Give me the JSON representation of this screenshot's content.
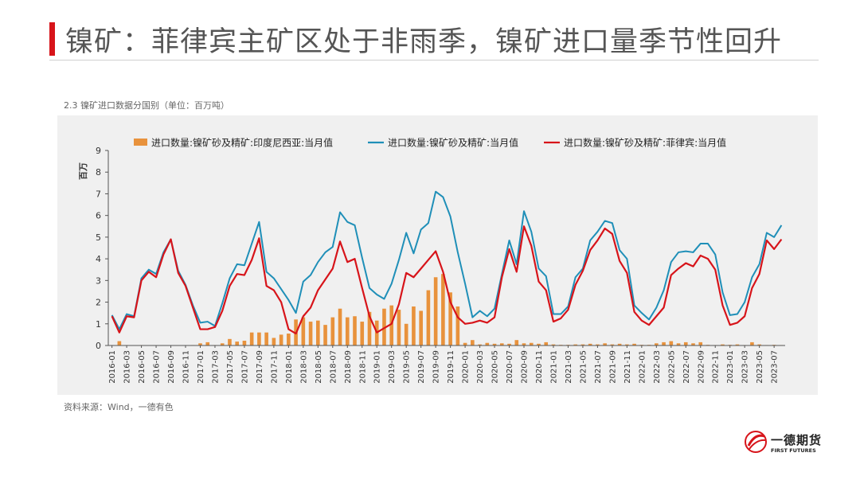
{
  "slide": {
    "title": "镍矿：菲律宾主矿区处于非雨季，镍矿进口量季节性回升",
    "accent_color": "#d7141a"
  },
  "chart_caption": "2.3 镍矿进口数据分国别（单位：百万吨）",
  "source_note": "资料来源：Wind，一德有色",
  "logo": {
    "name_cn": "一德期货",
    "name_en": "FIRST FUTURES",
    "icon": "swoosh-circle-logo"
  },
  "chart_data": {
    "type": "bar",
    "ylabel": "百万",
    "ylim": [
      0,
      9
    ],
    "yticks": [
      0,
      1,
      2,
      3,
      4,
      5,
      6,
      7,
      8,
      9
    ],
    "grid": false,
    "legend_position": "top",
    "x": [
      "2016-01",
      "2016-02",
      "2016-03",
      "2016-04",
      "2016-05",
      "2016-06",
      "2016-07",
      "2016-08",
      "2016-09",
      "2016-10",
      "2016-11",
      "2016-12",
      "2017-01",
      "2017-02",
      "2017-03",
      "2017-04",
      "2017-05",
      "2017-06",
      "2017-07",
      "2017-08",
      "2017-09",
      "2017-10",
      "2017-11",
      "2017-12",
      "2018-01",
      "2018-02",
      "2018-03",
      "2018-04",
      "2018-05",
      "2018-06",
      "2018-07",
      "2018-08",
      "2018-09",
      "2018-10",
      "2018-11",
      "2018-12",
      "2019-01",
      "2019-02",
      "2019-03",
      "2019-04",
      "2019-05",
      "2019-06",
      "2019-07",
      "2019-08",
      "2019-09",
      "2019-10",
      "2019-11",
      "2019-12",
      "2020-01",
      "2020-02",
      "2020-03",
      "2020-04",
      "2020-05",
      "2020-06",
      "2020-07",
      "2020-08",
      "2020-09",
      "2020-10",
      "2020-11",
      "2020-12",
      "2021-01",
      "2021-02",
      "2021-03",
      "2021-04",
      "2021-05",
      "2021-06",
      "2021-07",
      "2021-08",
      "2021-09",
      "2021-10",
      "2021-11",
      "2021-12",
      "2022-01",
      "2022-02",
      "2022-03",
      "2022-04",
      "2022-05",
      "2022-06",
      "2022-07",
      "2022-08",
      "2022-09",
      "2022-10",
      "2022-11",
      "2022-12",
      "2023-01",
      "2023-02",
      "2023-03",
      "2023-04",
      "2023-05",
      "2023-06",
      "2023-07",
      "2023-08"
    ],
    "xtick_labels": [
      "2016-01",
      "2016-03",
      "2016-05",
      "2016-07",
      "2016-09",
      "2016-11",
      "2017-01",
      "2017-03",
      "2017-05",
      "2017-07",
      "2017-09",
      "2017-11",
      "2018-01",
      "2018-03",
      "2018-05",
      "2018-07",
      "2018-09",
      "2018-11",
      "2019-01",
      "2019-03",
      "2019-05",
      "2019-07",
      "2019-09",
      "2019-11",
      "2020-01",
      "2020-03",
      "2020-05",
      "2020-07",
      "2020-09",
      "2020-11",
      "2021-01",
      "2021-03",
      "2021-05",
      "2021-07",
      "2021-09",
      "2021-11",
      "2022-01",
      "2022-03",
      "2022-05",
      "2022-07",
      "2022-09",
      "2022-11",
      "2023-01",
      "2023-03",
      "2023-05",
      "2023-07"
    ],
    "series": [
      {
        "name": "进口数量:镍矿砂及精矿:印度尼西亚:当月值",
        "type": "bar",
        "color": "#e8923c",
        "values": [
          0.02,
          0.2,
          0.02,
          0.01,
          0.02,
          0.01,
          0.01,
          0,
          0,
          0,
          0,
          0.02,
          0.1,
          0.15,
          0.02,
          0.1,
          0.3,
          0.18,
          0.22,
          0.6,
          0.6,
          0.6,
          0.35,
          0.5,
          0.55,
          1.2,
          1.3,
          1.1,
          1.15,
          0.95,
          1.3,
          1.7,
          1.3,
          1.35,
          1.1,
          1.55,
          1.15,
          1.7,
          1.85,
          1.65,
          1.0,
          1.8,
          1.6,
          2.55,
          3.15,
          3.3,
          2.45,
          1.8,
          0.12,
          0.25,
          0.05,
          0.12,
          0.08,
          0.1,
          0.08,
          0.25,
          0.1,
          0.12,
          0.08,
          0.15,
          0.05,
          0.03,
          0.03,
          0.05,
          0.05,
          0.08,
          0.05,
          0.1,
          0.05,
          0.08,
          0.05,
          0.08,
          0.03,
          0.03,
          0.1,
          0.15,
          0.2,
          0.1,
          0.15,
          0.1,
          0.15,
          0.03,
          0.02,
          0.05,
          0.03,
          0.05,
          0.02,
          0.15,
          0.05,
          0.02,
          0.03,
          0.02
        ]
      },
      {
        "name": "进口数量:镍矿砂及精矿:当月值",
        "type": "line",
        "color": "#1f8fb8",
        "values": [
          1.4,
          0.75,
          1.45,
          1.35,
          3.1,
          3.5,
          3.3,
          4.3,
          4.9,
          3.45,
          2.8,
          1.85,
          1.05,
          1.1,
          0.9,
          1.95,
          3.1,
          3.75,
          3.7,
          4.7,
          5.7,
          3.4,
          3.1,
          2.6,
          2.1,
          1.5,
          2.95,
          3.25,
          3.85,
          4.3,
          4.55,
          6.15,
          5.7,
          5.55,
          4.05,
          2.65,
          2.35,
          2.15,
          2.85,
          3.95,
          5.2,
          4.25,
          5.35,
          5.65,
          7.1,
          6.85,
          5.95,
          4.3,
          2.85,
          1.3,
          1.6,
          1.35,
          1.7,
          3.3,
          4.85,
          3.75,
          6.2,
          5.25,
          3.55,
          3.2,
          1.45,
          1.45,
          1.8,
          3.15,
          3.55,
          4.85,
          5.25,
          5.75,
          5.65,
          4.4,
          4.0,
          1.85,
          1.5,
          1.2,
          1.75,
          2.55,
          3.85,
          4.3,
          4.35,
          4.3,
          4.7,
          4.7,
          4.2,
          2.45,
          1.4,
          1.45,
          2.0,
          3.15,
          3.75,
          5.2,
          5.0,
          5.55
        ]
      },
      {
        "name": "进口数量:镍矿砂及精矿:菲律宾:当月值",
        "type": "line",
        "color": "#d7141a",
        "values": [
          1.35,
          0.6,
          1.35,
          1.3,
          3.0,
          3.4,
          3.15,
          4.2,
          4.9,
          3.35,
          2.75,
          1.75,
          0.75,
          0.75,
          0.85,
          1.6,
          2.75,
          3.3,
          3.25,
          3.95,
          4.95,
          2.75,
          2.55,
          2.0,
          0.75,
          0.55,
          1.35,
          1.75,
          2.55,
          3.05,
          3.55,
          4.8,
          3.85,
          4.0,
          2.65,
          1.35,
          0.6,
          0.8,
          1.0,
          1.9,
          3.35,
          3.15,
          3.55,
          3.95,
          4.35,
          3.4,
          2.0,
          1.3,
          1.0,
          1.05,
          1.15,
          1.05,
          1.3,
          3.15,
          4.45,
          3.4,
          5.5,
          4.6,
          2.95,
          2.55,
          1.1,
          1.25,
          1.65,
          2.8,
          3.45,
          4.4,
          4.85,
          5.4,
          5.15,
          3.9,
          3.35,
          1.55,
          1.15,
          0.95,
          1.35,
          1.75,
          3.25,
          3.55,
          3.8,
          3.65,
          4.15,
          4.0,
          3.5,
          1.85,
          0.95,
          1.05,
          1.35,
          2.65,
          3.3,
          4.85,
          4.45,
          4.9
        ]
      }
    ]
  }
}
